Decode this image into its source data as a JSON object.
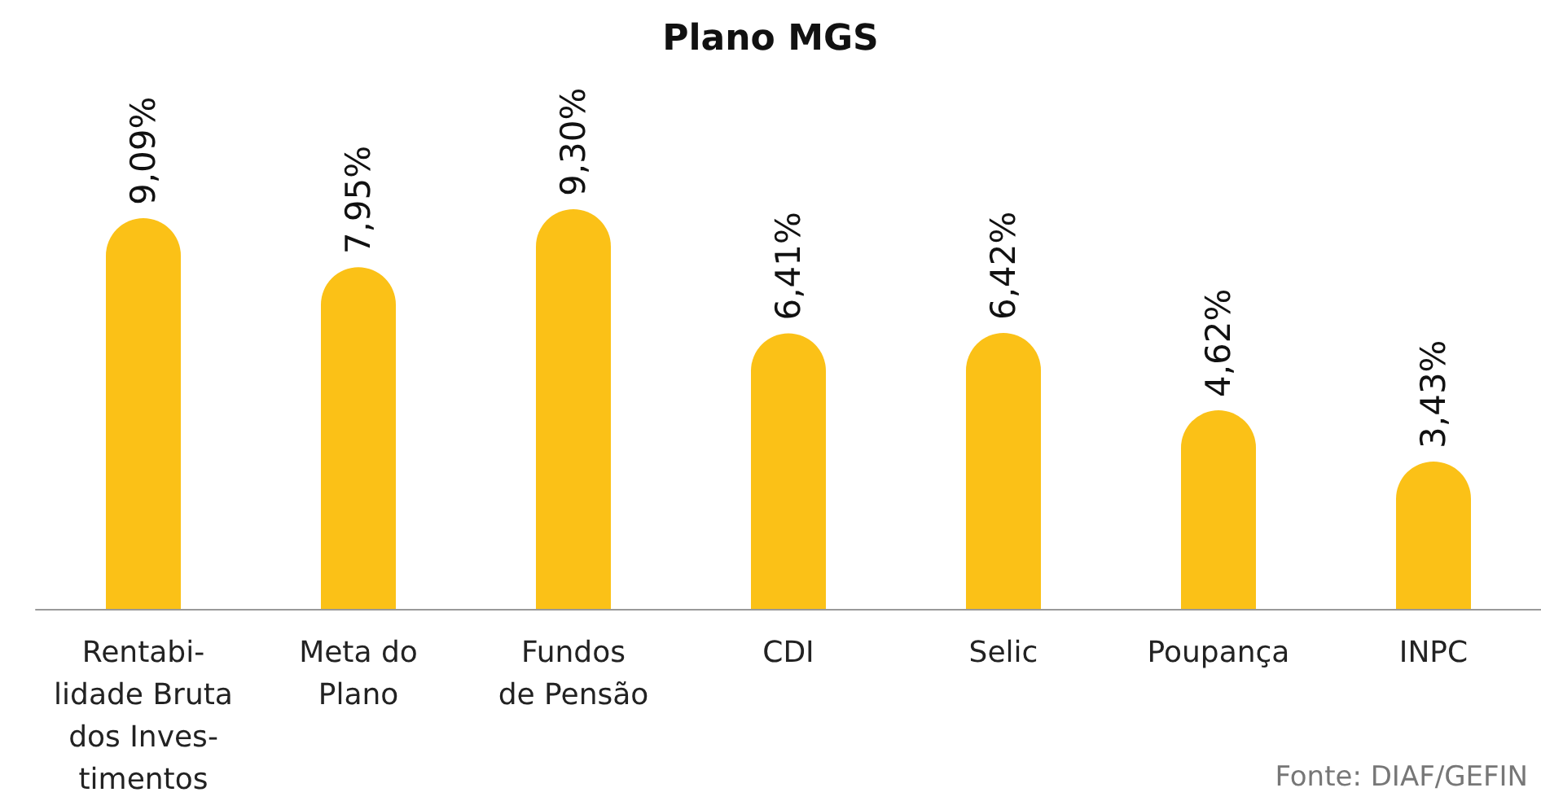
{
  "chart_data": {
    "type": "bar",
    "title": "Plano MGS",
    "categories": [
      "Rentabi-\nlidade Bruta\ndos Inves-\ntimentos",
      "Meta do\nPlano",
      "Fundos\nde Pensão",
      "CDI",
      "Selic",
      "Poupança",
      "INPC"
    ],
    "values": [
      9.09,
      7.95,
      9.3,
      6.41,
      6.42,
      4.62,
      3.43
    ],
    "value_labels": [
      "9,09%",
      "7,95%",
      "9,30%",
      "6,41%",
      "6,42%",
      "4,62%",
      "3,43%"
    ],
    "color": "#fbc117",
    "annotations": [
      "Fonte: DIAF/GEFIN"
    ]
  }
}
